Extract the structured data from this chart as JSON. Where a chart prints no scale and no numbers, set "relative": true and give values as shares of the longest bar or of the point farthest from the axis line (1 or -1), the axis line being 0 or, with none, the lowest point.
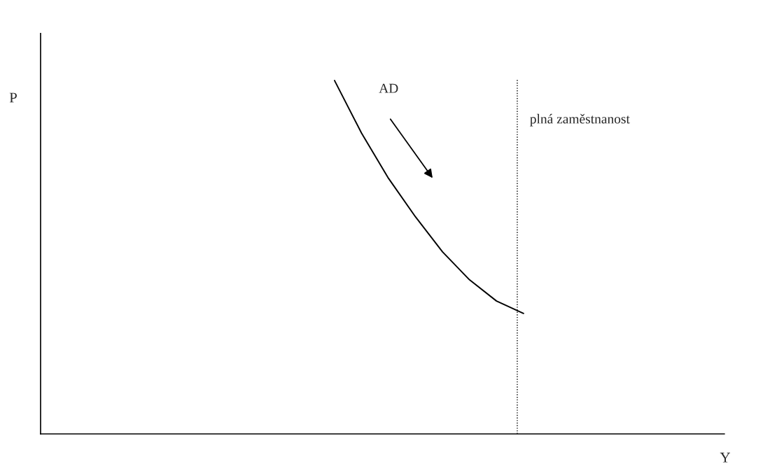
{
  "chart_data": {
    "type": "line",
    "relative": true,
    "categories": [
      null,
      null,
      null,
      null,
      null,
      null,
      null,
      null
    ],
    "series": [
      {
        "color": "#000000",
        "values": [
          1.0,
          0.851,
          0.723,
          0.614,
          0.515,
          0.436,
          0.376,
          0.341
        ]
      }
    ],
    "annotations": [
      "P",
      "AD",
      "plná zaměstnanost",
      "Y"
    ],
    "marker": "none",
    "line_style": "solid"
  }
}
